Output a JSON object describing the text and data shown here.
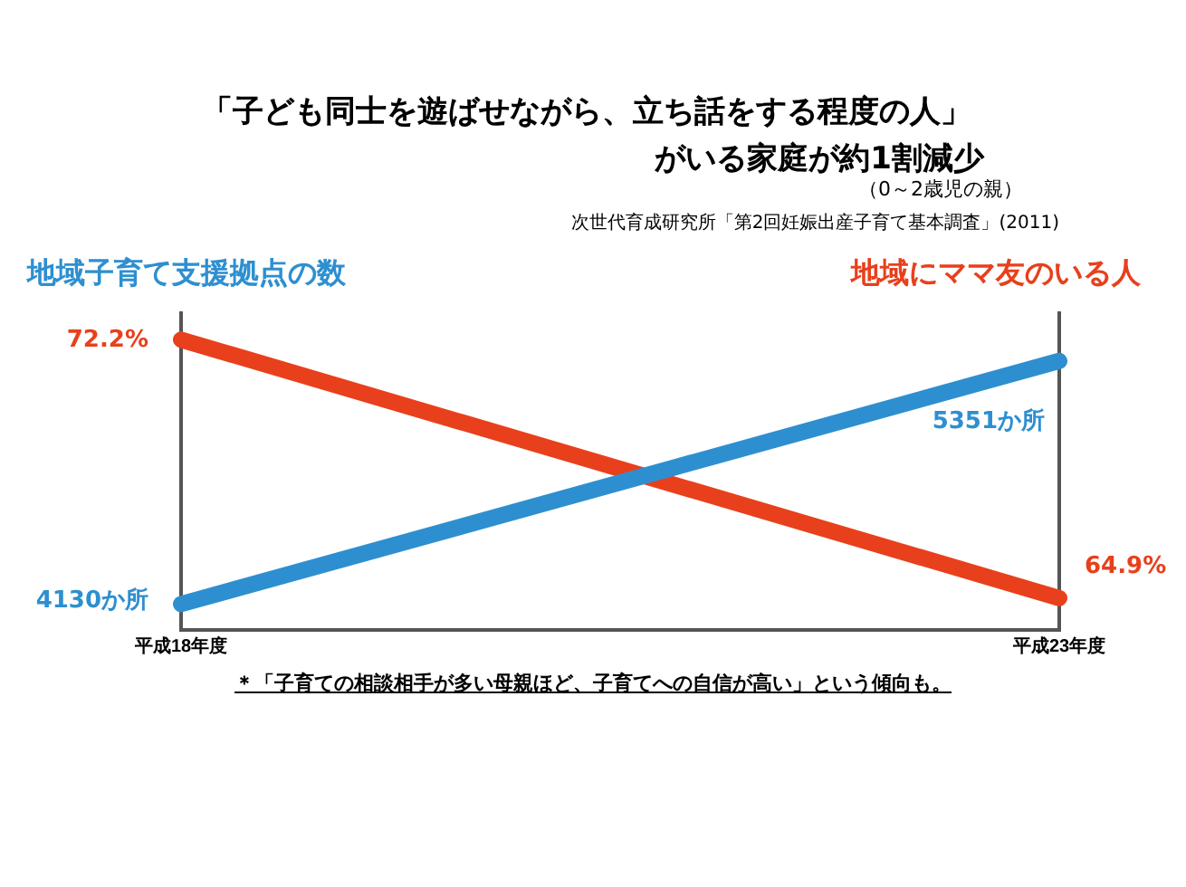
{
  "chart_data": {
    "type": "line",
    "title": "「子ども同士を遊ばせながら、立ち話をする程度の人」がいる家庭が約1割減少",
    "subtitle": "（0～2歳児の親）",
    "categories": [
      "平成18年度",
      "平成23年度"
    ],
    "series": [
      {
        "name": "地域子育て支援拠点の数",
        "color": "#2e8fd0",
        "axis": "y2",
        "values": [
          4130,
          5351
        ],
        "value_labels": [
          "4130か所",
          "5351か所"
        ]
      },
      {
        "name": "地域にママ友のいる人",
        "color": "#e8401c",
        "values": [
          72.2,
          64.9
        ],
        "value_labels": [
          "72.2%",
          "64.9%"
        ]
      }
    ],
    "tick_labels": "x",
    "grid": "x",
    "legend": false,
    "marker": "none",
    "line_style": "solid",
    "annotations": [
      "次世代育成研究所「第2回妊娠出産子育て基本調査」(2011)",
      "＊「子育ての相談相手が多い母親ほど、子育てへの自信が高い」という傾向も。"
    ]
  }
}
